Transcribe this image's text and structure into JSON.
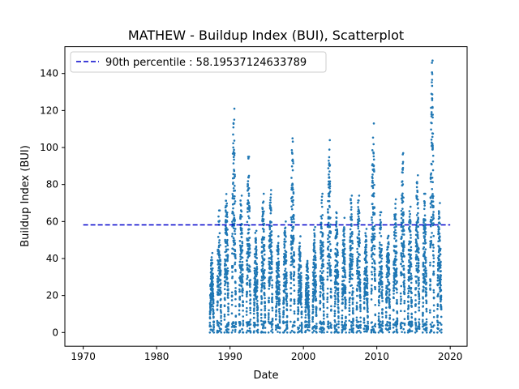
{
  "chart_data": {
    "type": "scatter",
    "title": "MATHEW - Buildup Index (BUI), Scatterplot",
    "xlabel": "Date",
    "ylabel": "Buildup Index (BUI)",
    "xlim": [
      1967.5,
      2022.3
    ],
    "ylim": [
      -7.4,
      154.5
    ],
    "x_ticks": [
      1970,
      1980,
      1990,
      2000,
      2010,
      2020
    ],
    "y_ticks": [
      0,
      20,
      40,
      60,
      80,
      100,
      120,
      140
    ],
    "grid": false,
    "legend_position": "top-left",
    "threshold": {
      "label": "90th percentile : 58.19537124633789",
      "value": 58.19537124633789,
      "x_range": [
        1970,
        2020
      ],
      "color": "#0000cc",
      "style": "dashed"
    },
    "series_color": "#1f77b4",
    "season_peaks": [
      {
        "year": 1987,
        "peak": 43
      },
      {
        "year": 1988,
        "peak": 66
      },
      {
        "year": 1989,
        "peak": 81
      },
      {
        "year": 1990,
        "peak": 121
      },
      {
        "year": 1991,
        "peak": 74
      },
      {
        "year": 1992,
        "peak": 95
      },
      {
        "year": 1993,
        "peak": 55
      },
      {
        "year": 1994,
        "peak": 75
      },
      {
        "year": 1995,
        "peak": 77
      },
      {
        "year": 1996,
        "peak": 52
      },
      {
        "year": 1997,
        "peak": 60
      },
      {
        "year": 1998,
        "peak": 106
      },
      {
        "year": 1999,
        "peak": 52
      },
      {
        "year": 2000,
        "peak": 40
      },
      {
        "year": 2001,
        "peak": 57
      },
      {
        "year": 2002,
        "peak": 75
      },
      {
        "year": 2003,
        "peak": 104
      },
      {
        "year": 2004,
        "peak": 67
      },
      {
        "year": 2005,
        "peak": 62
      },
      {
        "year": 2006,
        "peak": 74
      },
      {
        "year": 2007,
        "peak": 74
      },
      {
        "year": 2008,
        "peak": 56
      },
      {
        "year": 2009,
        "peak": 113
      },
      {
        "year": 2010,
        "peak": 65
      },
      {
        "year": 2011,
        "peak": 55
      },
      {
        "year": 2012,
        "peak": 72
      },
      {
        "year": 2013,
        "peak": 97
      },
      {
        "year": 2014,
        "peak": 68
      },
      {
        "year": 2015,
        "peak": 85
      },
      {
        "year": 2016,
        "peak": 75
      },
      {
        "year": 2017,
        "peak": 147
      },
      {
        "year": 2018,
        "peak": 70
      }
    ]
  }
}
